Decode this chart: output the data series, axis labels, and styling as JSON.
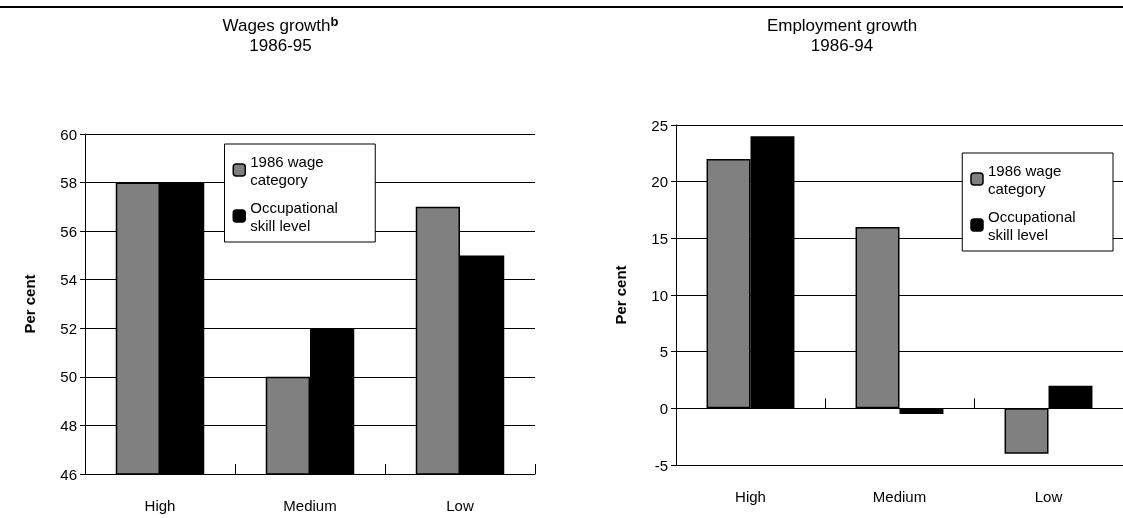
{
  "chart_data": [
    {
      "type": "bar",
      "title": "Wages growth$^{b}$",
      "subtitle": "1986-95",
      "ylabel": "Per cent",
      "categories": [
        "High",
        "Medium",
        "Low"
      ],
      "series": [
        {
          "name": "1986 wage category",
          "color": "#808080",
          "values": [
            58,
            50,
            57
          ]
        },
        {
          "name": "Occupational skill level",
          "color": "#000000",
          "values": [
            58,
            52,
            55
          ]
        }
      ],
      "ylim": [
        46,
        60
      ],
      "yticks": [
        46,
        48,
        50,
        52,
        54,
        56,
        58,
        60
      ],
      "grid": "y",
      "legend": "top"
    },
    {
      "type": "bar",
      "title": "Employment growth",
      "subtitle": "1986-94",
      "ylabel": "Per cent",
      "categories": [
        "High",
        "Medium",
        "Low"
      ],
      "series": [
        {
          "name": "1986 wage category",
          "color": "#808080",
          "values": [
            22,
            16,
            -4
          ]
        },
        {
          "name": "Occupational skill level",
          "color": "#000000",
          "values": [
            24,
            -0.5,
            2
          ]
        }
      ],
      "ylim": [
        -5,
        25
      ],
      "yticks": [
        -5,
        0,
        5,
        10,
        15,
        20,
        25
      ],
      "grid": "y",
      "legend": "top right"
    }
  ]
}
